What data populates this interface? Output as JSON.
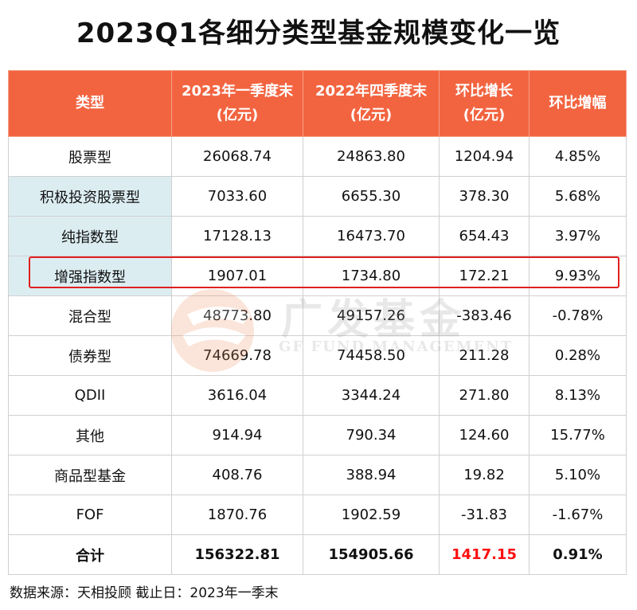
{
  "title": "2023Q1各细分类型基金规模变化一览",
  "header": {
    "col1": "类型",
    "col2": [
      "2023年一季度末",
      "(亿元)"
    ],
    "col3": [
      "2022年四季度末",
      "(亿元)"
    ],
    "col4": [
      "环比增长",
      "(亿元)"
    ],
    "col5": "环比增幅"
  },
  "rows": [
    {
      "type": "股票型",
      "q1": "26068.74",
      "q4": "24863.80",
      "growth": "1204.94",
      "rate": "4.85%",
      "sub": false
    },
    {
      "type": "积极投资股票型",
      "q1": "7033.60",
      "q4": "6655.30",
      "growth": "378.30",
      "rate": "5.68%",
      "sub": true
    },
    {
      "type": "纯指数型",
      "q1": "17128.13",
      "q4": "16473.70",
      "growth": "654.43",
      "rate": "3.97%",
      "sub": true
    },
    {
      "type": "增强指数型",
      "q1": "1907.01",
      "q4": "1734.80",
      "growth": "172.21",
      "rate": "9.93%",
      "sub": true,
      "highlight": true
    },
    {
      "type": "混合型",
      "q1": "48773.80",
      "q4": "49157.26",
      "growth": "-383.46",
      "rate": "-0.78%",
      "sub": false
    },
    {
      "type": "债券型",
      "q1": "74669.78",
      "q4": "74458.50",
      "growth": "211.28",
      "rate": "0.28%",
      "sub": false
    },
    {
      "type": "QDII",
      "q1": "3616.04",
      "q4": "3344.24",
      "growth": "271.80",
      "rate": "8.13%",
      "sub": false
    },
    {
      "type": "其他",
      "q1": "914.94",
      "q4": "790.34",
      "growth": "124.60",
      "rate": "15.77%",
      "sub": false
    },
    {
      "type": "商品型基金",
      "q1": "408.76",
      "q4": "388.94",
      "growth": "19.82",
      "rate": "5.10%",
      "sub": false
    },
    {
      "type": "FOF",
      "q1": "1870.76",
      "q4": "1902.59",
      "growth": "-31.83",
      "rate": "-1.67%",
      "sub": false
    }
  ],
  "total": {
    "type": "合计",
    "q1": "156322.81",
    "q4": "154905.66",
    "growth": "1417.15",
    "rate": "0.91%"
  },
  "source": "数据来源：天相投顾  截止日：2023年一季末",
  "watermark": {
    "cn": "广发基金",
    "en": "GF FUND MANAGEMENT"
  },
  "colors": {
    "header_bg": "#f26440",
    "sub_row_bg": "#dcedf2",
    "highlight_border": "#e02020",
    "total_growth": "#ff1010"
  }
}
